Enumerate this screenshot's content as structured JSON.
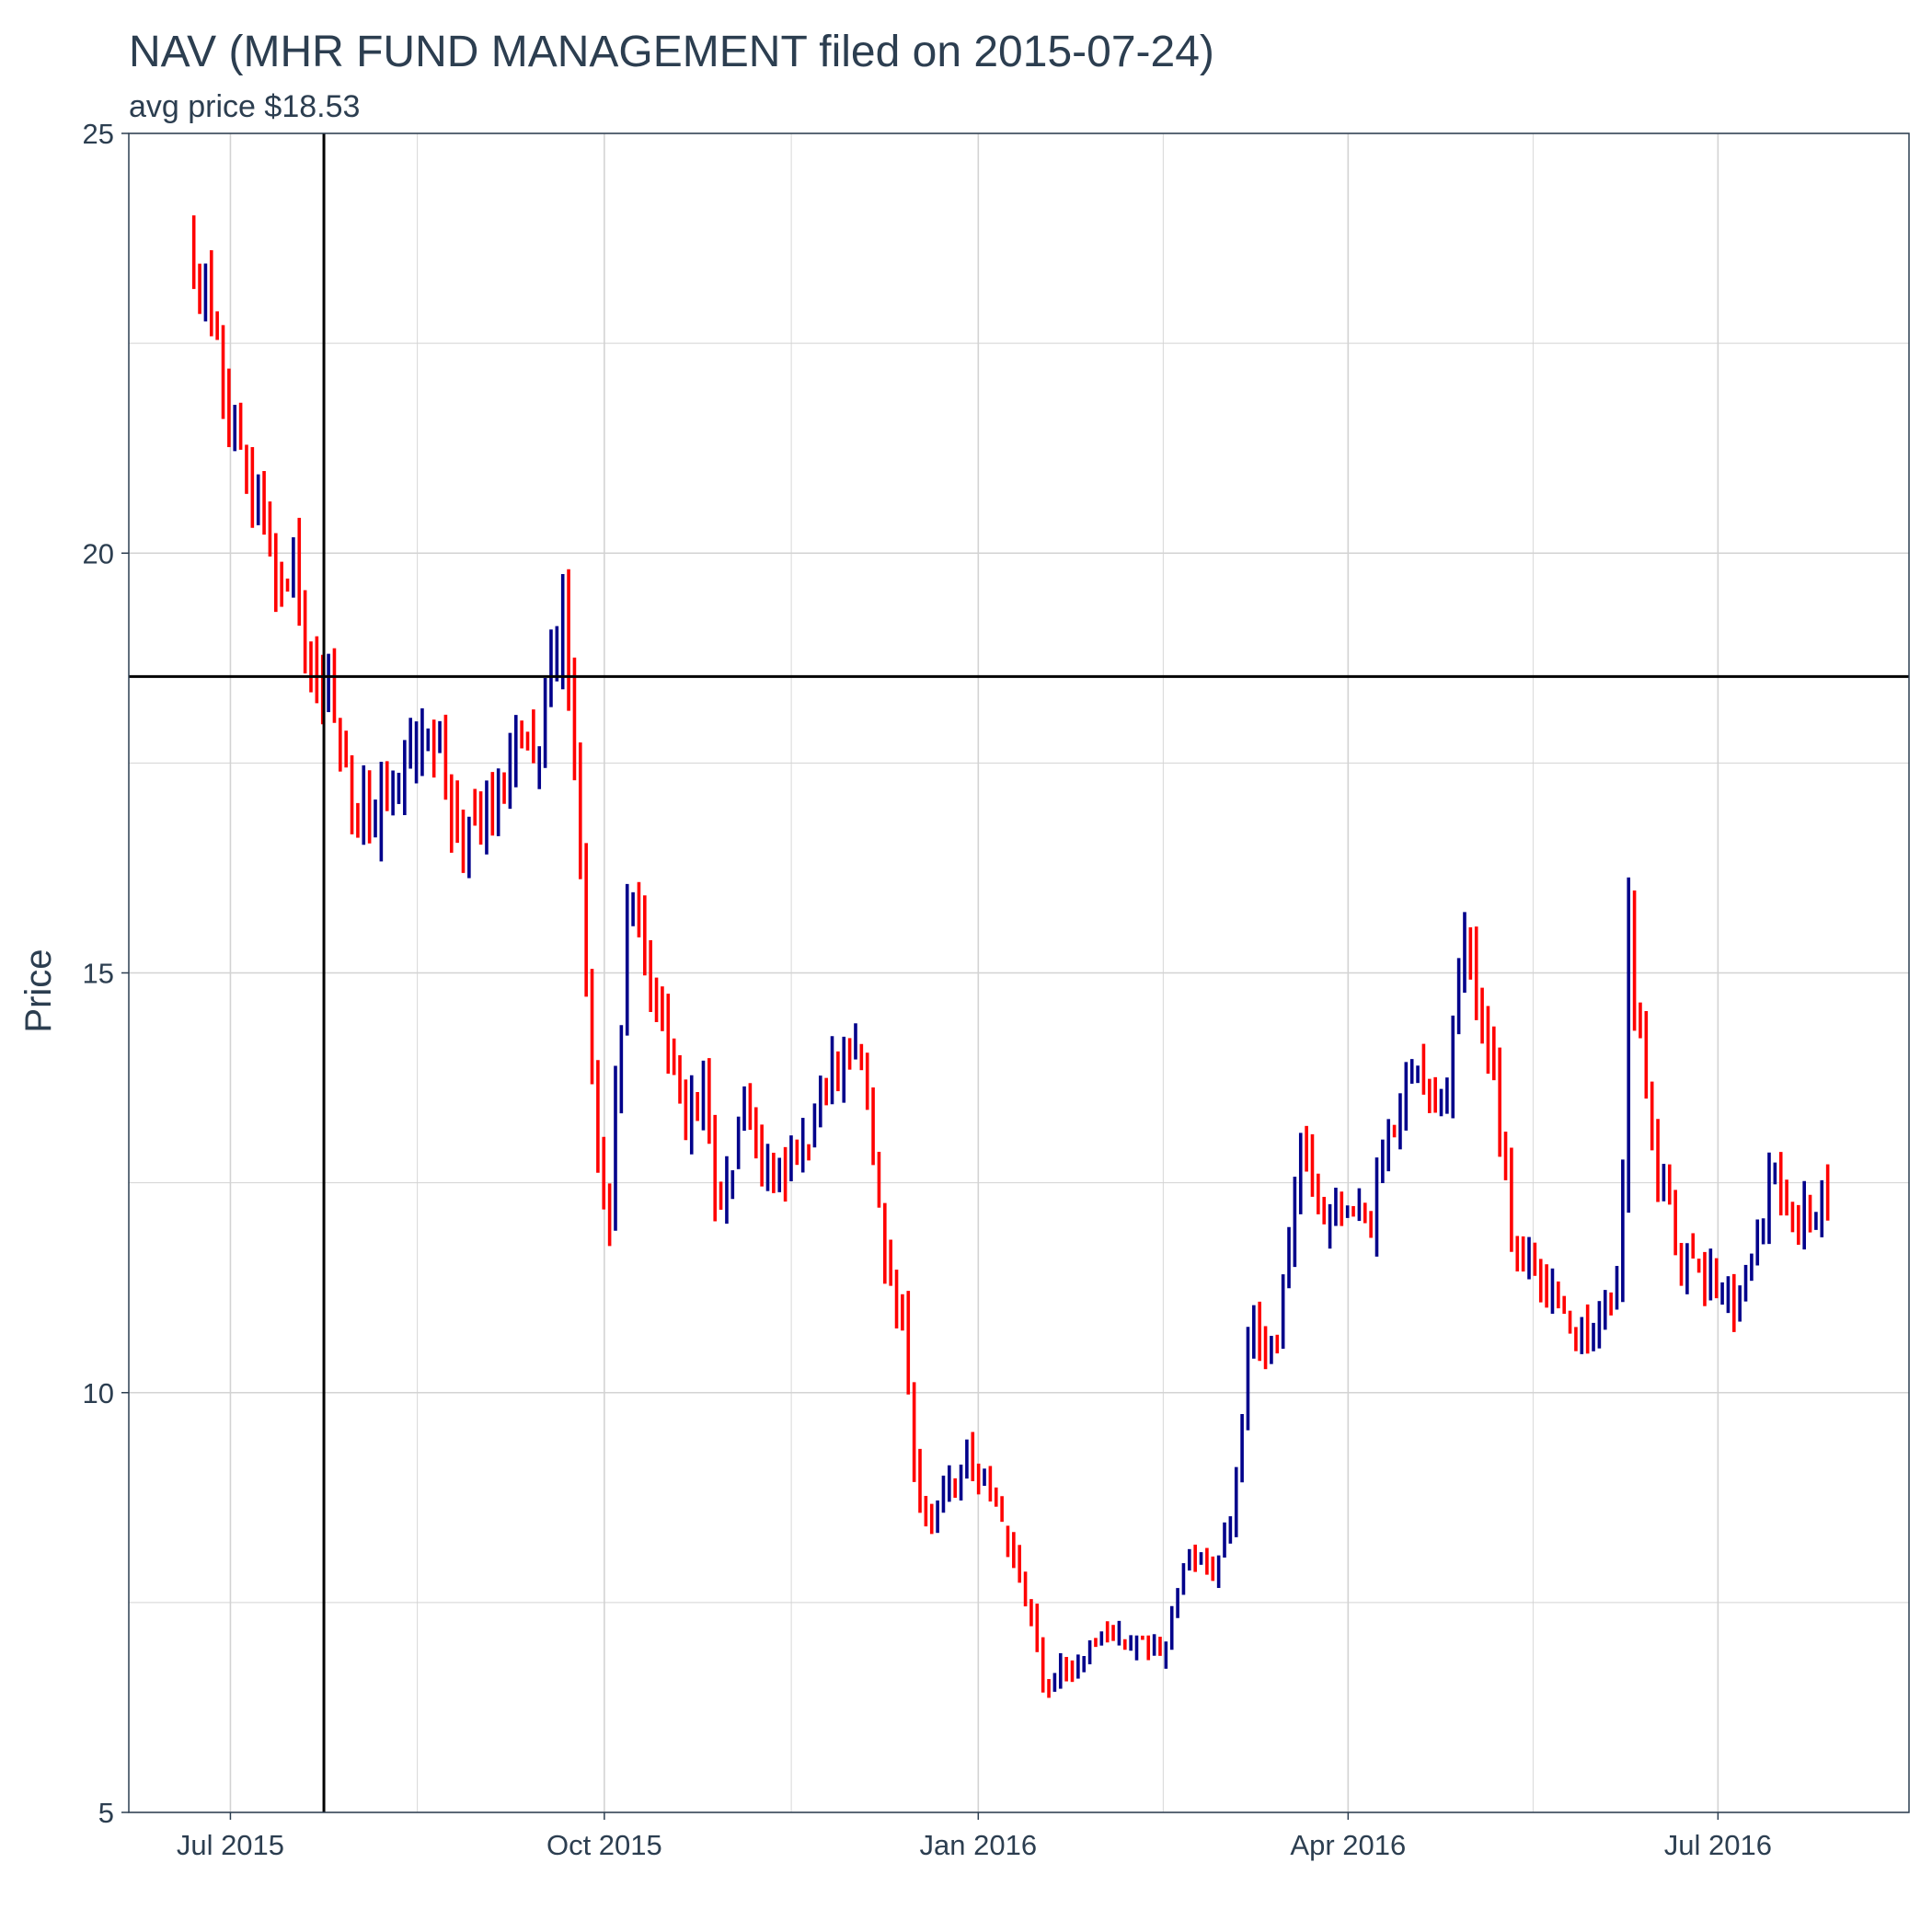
{
  "chart_data": {
    "type": "ohlc",
    "title": "NAV (MHR FUND MANAGEMENT filed on 2015-07-24)",
    "subtitle": "avg price $18.53",
    "xlabel": "",
    "ylabel": "Price",
    "ylim": [
      5,
      25
    ],
    "yticks": [
      5,
      10,
      15,
      20,
      25
    ],
    "xlim": [
      "2015-06-06",
      "2016-08-17"
    ],
    "xticks": [
      {
        "date": "2015-07-01",
        "label": "Jul 2015"
      },
      {
        "date": "2015-10-01",
        "label": "Oct 2015"
      },
      {
        "date": "2016-01-01",
        "label": "Jan 2016"
      },
      {
        "date": "2016-04-01",
        "label": "Apr 2016"
      },
      {
        "date": "2016-07-01",
        "label": "Jul 2016"
      }
    ],
    "hline": 18.53,
    "vline": "2015-07-24",
    "grid": true,
    "colors": {
      "up": "#00008b",
      "down": "#ff0000",
      "reference": "#000000",
      "grid": "#d3d3d3",
      "text": "#2c3e50"
    },
    "anchors": [
      [
        "2015-06-22",
        23.5
      ],
      [
        "2015-06-26",
        22.6
      ],
      [
        "2015-07-01",
        21.8
      ],
      [
        "2015-07-06",
        20.9
      ],
      [
        "2015-07-10",
        20.5
      ],
      [
        "2015-07-14",
        19.6
      ],
      [
        "2015-07-17",
        19.9
      ],
      [
        "2015-07-21",
        18.4
      ],
      [
        "2015-07-24",
        18.6
      ],
      [
        "2015-07-29",
        17.3
      ],
      [
        "2015-08-05",
        16.9
      ],
      [
        "2015-08-13",
        17.4
      ],
      [
        "2015-08-20",
        17.9
      ],
      [
        "2015-08-27",
        16.6
      ],
      [
        "2015-09-03",
        16.9
      ],
      [
        "2015-09-10",
        17.8
      ],
      [
        "2015-09-15",
        17.9
      ],
      [
        "2015-09-21",
        19.2
      ],
      [
        "2015-09-24",
        17.0
      ],
      [
        "2015-09-28",
        13.5
      ],
      [
        "2015-10-02",
        12.0
      ],
      [
        "2015-10-05",
        14.4
      ],
      [
        "2015-10-07",
        16.3
      ],
      [
        "2015-10-14",
        14.7
      ],
      [
        "2015-10-21",
        13.2
      ],
      [
        "2015-10-26",
        13.5
      ],
      [
        "2015-10-29",
        12.0
      ],
      [
        "2015-11-05",
        13.4
      ],
      [
        "2015-11-10",
        12.5
      ],
      [
        "2015-11-18",
        12.9
      ],
      [
        "2015-11-25",
        13.7
      ],
      [
        "2015-12-01",
        14.1
      ],
      [
        "2015-12-04",
        13.6
      ],
      [
        "2015-12-09",
        11.6
      ],
      [
        "2015-12-14",
        10.8
      ],
      [
        "2015-12-17",
        8.7
      ],
      [
        "2015-12-21",
        8.5
      ],
      [
        "2015-12-29",
        9.3
      ],
      [
        "2016-01-06",
        8.6
      ],
      [
        "2016-01-12",
        7.6
      ],
      [
        "2016-01-18",
        6.5
      ],
      [
        "2016-01-25",
        6.8
      ],
      [
        "2016-01-29",
        7.0
      ],
      [
        "2016-02-05",
        7.1
      ],
      [
        "2016-02-10",
        7.0
      ],
      [
        "2016-02-15",
        6.9
      ],
      [
        "2016-02-22",
        8.1
      ],
      [
        "2016-02-29",
        7.9
      ],
      [
        "2016-03-04",
        8.7
      ],
      [
        "2016-03-08",
        10.9
      ],
      [
        "2016-03-14",
        10.5
      ],
      [
        "2016-03-21",
        13.2
      ],
      [
        "2016-03-25",
        12.1
      ],
      [
        "2016-04-01",
        12.1
      ],
      [
        "2016-04-07",
        12.1
      ],
      [
        "2016-04-12",
        13.3
      ],
      [
        "2016-04-19",
        13.7
      ],
      [
        "2016-04-25",
        13.7
      ],
      [
        "2016-04-29",
        15.5
      ],
      [
        "2016-05-06",
        13.9
      ],
      [
        "2016-05-12",
        11.7
      ],
      [
        "2016-05-19",
        11.3
      ],
      [
        "2016-05-26",
        10.6
      ],
      [
        "2016-06-02",
        11.0
      ],
      [
        "2016-06-07",
        11.2
      ],
      [
        "2016-06-09",
        15.6
      ],
      [
        "2016-06-15",
        12.8
      ],
      [
        "2016-06-22",
        11.6
      ],
      [
        "2016-06-29",
        11.4
      ],
      [
        "2016-07-06",
        11.0
      ],
      [
        "2016-07-11",
        12.0
      ],
      [
        "2016-07-15",
        12.6
      ],
      [
        "2016-07-21",
        12.0
      ],
      [
        "2016-07-28",
        12.4
      ]
    ],
    "n_bars": 280,
    "noise": 0.22
  }
}
